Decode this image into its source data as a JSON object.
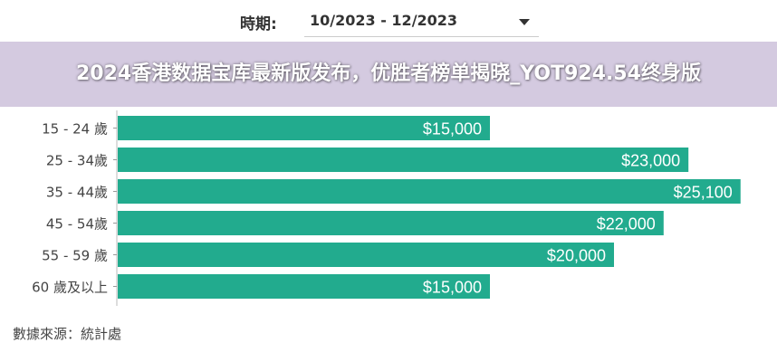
{
  "header": {
    "period_label": "時期:",
    "period_value": "10/2023 - 12/2023",
    "caret_icon": "caret-down-icon"
  },
  "chart_data": {
    "type": "bar",
    "orientation": "horizontal",
    "categories": [
      "15 - 24 歲",
      "25 - 34歲",
      "35 - 44歲",
      "45 - 54歲",
      "55 - 59 歲",
      "60 歲及以上"
    ],
    "values": [
      15000,
      23000,
      25100,
      22000,
      20000,
      15000
    ],
    "data_labels": [
      "$15,000",
      "$23,000",
      "$25,100",
      "$22,000",
      "$20,000",
      "$15,000"
    ],
    "xlim": [
      0,
      25100
    ],
    "grid": false,
    "bar_color": "#22ab8e"
  },
  "footer": {
    "source": "數據來源：統計處"
  },
  "banner": {
    "title": "2024香港数据宝库最新版发布，优胜者榜单揭晓_YOT924.54终身版"
  }
}
